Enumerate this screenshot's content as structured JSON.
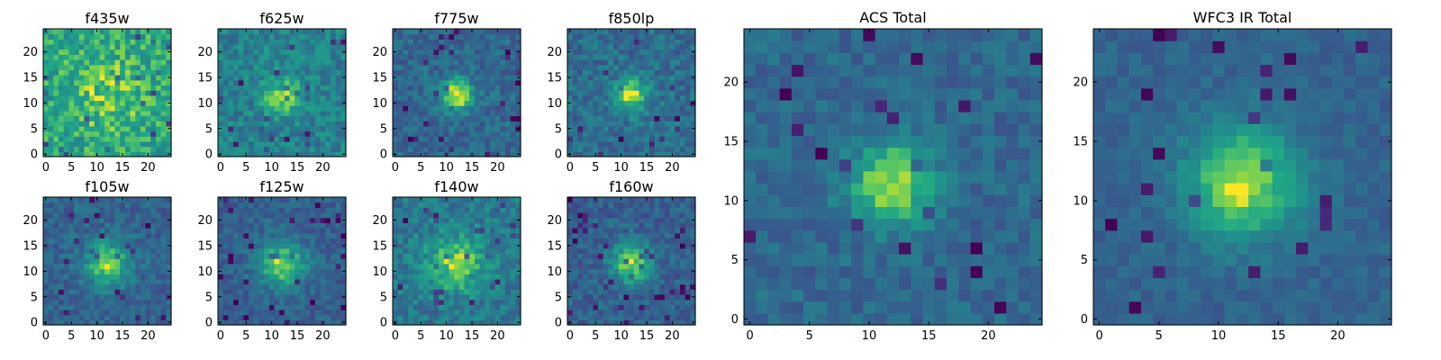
{
  "figure": {
    "panel_count": 10,
    "colormap": "viridis"
  },
  "chart_data": [
    {
      "type": "heatmap",
      "title": "f435w",
      "x_ticks": [
        "0",
        "5",
        "10",
        "15",
        "20"
      ],
      "y_ticks": [
        "0",
        "5",
        "10",
        "15",
        "20"
      ],
      "xlim": [
        -0.5,
        24.5
      ],
      "ylim": [
        -0.5,
        24.5
      ],
      "grid": false,
      "source": {
        "peak": 0.15,
        "sigma": 5.0,
        "noise": 0.36,
        "base": 0.72
      }
    },
    {
      "type": "heatmap",
      "title": "f625w",
      "x_ticks": [
        "0",
        "5",
        "10",
        "15",
        "20"
      ],
      "y_ticks": [
        "0",
        "5",
        "10",
        "15",
        "20"
      ],
      "xlim": [
        -0.5,
        24.5
      ],
      "ylim": [
        -0.5,
        24.5
      ],
      "grid": false,
      "source": {
        "peak": 0.35,
        "sigma": 2.6,
        "noise": 0.3,
        "base": 0.55
      }
    },
    {
      "type": "heatmap",
      "title": "f775w",
      "x_ticks": [
        "0",
        "5",
        "10",
        "15",
        "20"
      ],
      "y_ticks": [
        "0",
        "5",
        "10",
        "15",
        "20"
      ],
      "xlim": [
        -0.5,
        24.5
      ],
      "ylim": [
        -0.5,
        24.5
      ],
      "grid": false,
      "source": {
        "peak": 0.6,
        "sigma": 2.2,
        "noise": 0.26,
        "base": 0.42
      }
    },
    {
      "type": "heatmap",
      "title": "f850lp",
      "x_ticks": [
        "0",
        "5",
        "10",
        "15",
        "20"
      ],
      "y_ticks": [
        "0",
        "5",
        "10",
        "15",
        "20"
      ],
      "xlim": [
        -0.5,
        24.5
      ],
      "ylim": [
        -0.5,
        24.5
      ],
      "grid": false,
      "source": {
        "peak": 0.5,
        "sigma": 2.4,
        "noise": 0.28,
        "base": 0.45
      }
    },
    {
      "type": "heatmap",
      "title": "f105w",
      "x_ticks": [
        "0",
        "5",
        "10",
        "15",
        "20"
      ],
      "y_ticks": [
        "0",
        "5",
        "10",
        "15",
        "20"
      ],
      "xlim": [
        -0.5,
        24.5
      ],
      "ylim": [
        -0.5,
        24.5
      ],
      "grid": false,
      "source": {
        "peak": 0.55,
        "sigma": 3.0,
        "noise": 0.24,
        "base": 0.4
      }
    },
    {
      "type": "heatmap",
      "title": "f125w",
      "x_ticks": [
        "0",
        "5",
        "10",
        "15",
        "20"
      ],
      "y_ticks": [
        "0",
        "5",
        "10",
        "15",
        "20"
      ],
      "xlim": [
        -0.5,
        24.5
      ],
      "ylim": [
        -0.5,
        24.5
      ],
      "grid": false,
      "source": {
        "peak": 0.55,
        "sigma": 3.2,
        "noise": 0.22,
        "base": 0.38
      }
    },
    {
      "type": "heatmap",
      "title": "f140w",
      "x_ticks": [
        "0",
        "5",
        "10",
        "15",
        "20"
      ],
      "y_ticks": [
        "0",
        "5",
        "10",
        "15",
        "20"
      ],
      "xlim": [
        -0.5,
        24.5
      ],
      "ylim": [
        -0.5,
        24.5
      ],
      "grid": false,
      "source": {
        "peak": 0.4,
        "sigma": 4.0,
        "noise": 0.28,
        "base": 0.5
      }
    },
    {
      "type": "heatmap",
      "title": "f160w",
      "x_ticks": [
        "0",
        "5",
        "10",
        "15",
        "20"
      ],
      "y_ticks": [
        "0",
        "5",
        "10",
        "15",
        "20"
      ],
      "xlim": [
        -0.5,
        24.5
      ],
      "ylim": [
        -0.5,
        24.5
      ],
      "grid": false,
      "source": {
        "peak": 0.55,
        "sigma": 2.8,
        "noise": 0.24,
        "base": 0.38
      }
    },
    {
      "type": "heatmap",
      "title": "ACS Total",
      "x_ticks": [
        "0",
        "5",
        "10",
        "15",
        "20"
      ],
      "y_ticks": [
        "0",
        "5",
        "10",
        "15",
        "20"
      ],
      "xlim": [
        -0.5,
        24.5
      ],
      "ylim": [
        -0.5,
        24.5
      ],
      "grid": false,
      "source": {
        "peak": 0.55,
        "sigma": 2.5,
        "noise": 0.2,
        "base": 0.42
      }
    },
    {
      "type": "heatmap",
      "title": "WFC3 IR Total",
      "x_ticks": [
        "0",
        "5",
        "10",
        "15",
        "20"
      ],
      "y_ticks": [
        "0",
        "5",
        "10",
        "15",
        "20"
      ],
      "xlim": [
        -0.5,
        24.5
      ],
      "ylim": [
        -0.5,
        24.5
      ],
      "grid": false,
      "source": {
        "peak": 0.58,
        "sigma": 3.3,
        "noise": 0.14,
        "base": 0.4
      }
    }
  ]
}
